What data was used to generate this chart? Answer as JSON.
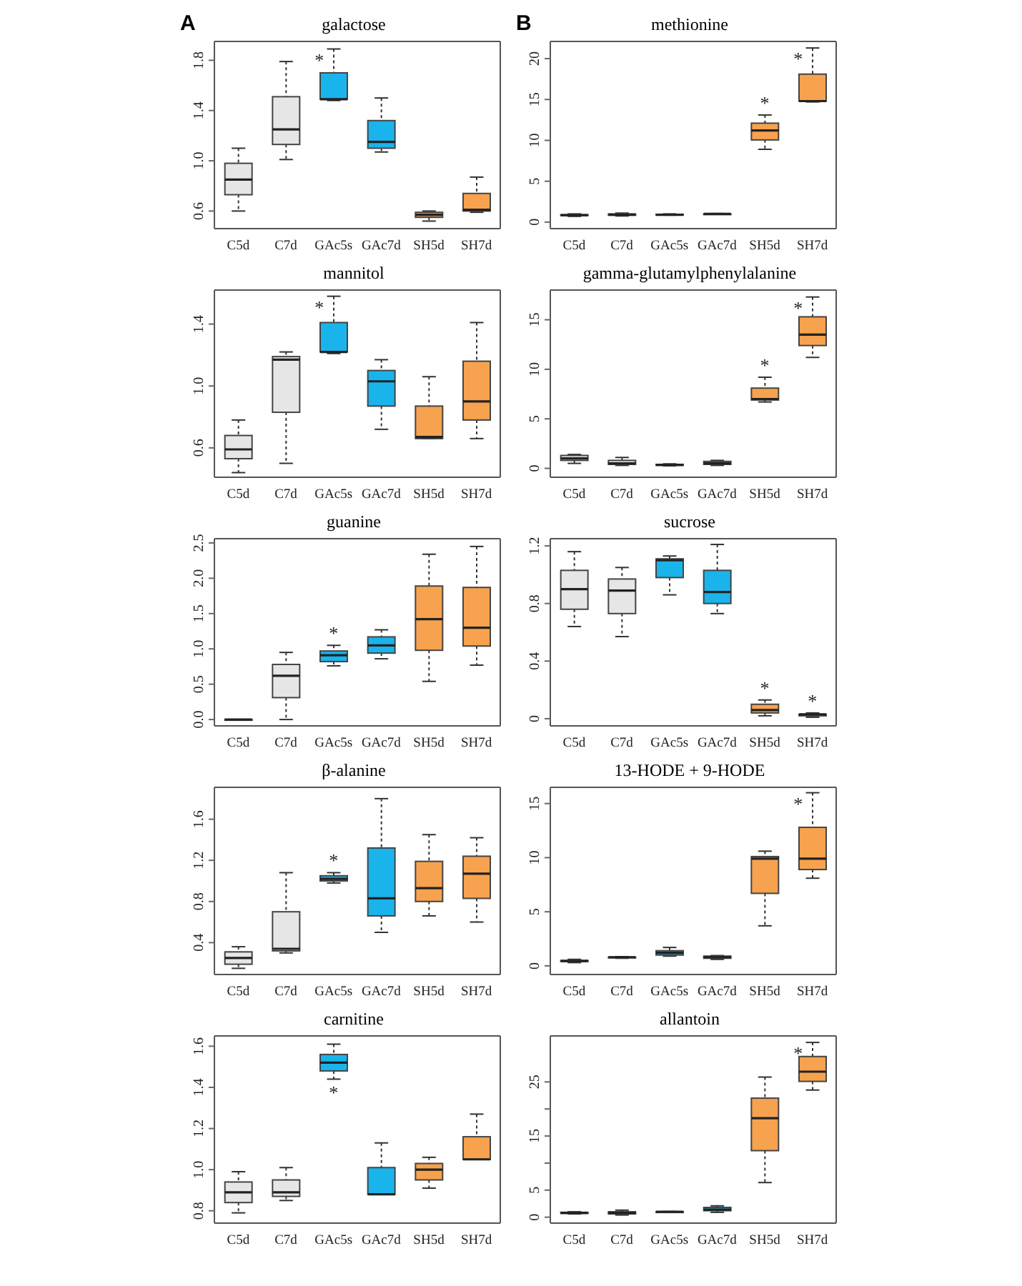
{
  "chart_data": [
    {
      "type": "box",
      "title": "galactose",
      "annotations": [
        "A",
        {
          "text": "*",
          "x": "GAc5s",
          "y": 1.89
        }
      ],
      "categories": [
        "C5d",
        "C7d",
        "GAc5s",
        "GAc7d",
        "SH5d",
        "SH7d"
      ],
      "colors": [
        "#e6e6e6",
        "#e6e6e6",
        "#1ab4ec",
        "#1ab4ec",
        "#f6a24e",
        "#f6a24e"
      ],
      "ylim": [
        0.46,
        1.95
      ],
      "yticks": [
        0.6,
        {
          "value": 1.0,
          "label": "1.0"
        },
        1.4,
        1.8
      ],
      "boxes": [
        {
          "low": 0.6,
          "q1": 0.73,
          "median": 0.85,
          "q3": 0.98,
          "high": 1.1
        },
        {
          "low": 1.01,
          "q1": 1.13,
          "median": 1.25,
          "q3": 1.51,
          "high": 1.79
        },
        {
          "low": 1.48,
          "q1": 1.49,
          "median": 1.49,
          "q3": 1.7,
          "high": 1.89
        },
        {
          "low": 1.07,
          "q1": 1.1,
          "median": 1.15,
          "q3": 1.32,
          "high": 1.5
        },
        {
          "low": 0.52,
          "q1": 0.55,
          "median": 0.57,
          "q3": 0.59,
          "high": 0.6
        },
        {
          "low": 0.59,
          "q1": 0.6,
          "median": 0.61,
          "q3": 0.74,
          "high": 0.87
        }
      ]
    },
    {
      "type": "box",
      "title": "methionine",
      "annotations": [
        "B",
        {
          "text": "*",
          "x": "SH5d",
          "y": 13.1
        },
        {
          "text": "*",
          "x": "SH7d",
          "y": 21.3
        }
      ],
      "categories": [
        "C5d",
        "C7d",
        "GAc5s",
        "GAc7d",
        "SH5d",
        "SH7d"
      ],
      "colors": [
        "#e6e6e6",
        "#e6e6e6",
        "#1ab4ec",
        "#1ab4ec",
        "#f6a24e",
        "#f6a24e"
      ],
      "ylim": [
        -0.8,
        22.1
      ],
      "yticks": [
        0,
        5,
        10,
        15,
        20
      ],
      "boxes": [
        {
          "low": 0.7,
          "q1": 0.8,
          "median": 0.85,
          "q3": 0.9,
          "high": 1.0
        },
        {
          "low": 0.75,
          "q1": 0.85,
          "median": 0.9,
          "q3": 1.0,
          "high": 1.1
        },
        {
          "low": 0.85,
          "q1": 0.9,
          "median": 0.9,
          "q3": 0.95,
          "high": 1.0
        },
        {
          "low": 0.95,
          "q1": 1.0,
          "median": 1.0,
          "q3": 1.0,
          "high": 1.05
        },
        {
          "low": 8.9,
          "q1": 10.05,
          "median": 11.2,
          "q3": 12.1,
          "high": 13.1
        },
        {
          "low": 14.7,
          "q1": 14.8,
          "median": 14.8,
          "q3": 18.1,
          "high": 21.3
        }
      ]
    },
    {
      "type": "box",
      "title": "mannitol",
      "annotations": [
        {
          "text": "*",
          "x": "GAc5s",
          "y": 1.58
        }
      ],
      "categories": [
        "C5d",
        "C7d",
        "GAc5s",
        "GAc7d",
        "SH5d",
        "SH7d"
      ],
      "colors": [
        "#e6e6e6",
        "#e6e6e6",
        "#1ab4ec",
        "#1ab4ec",
        "#f6a24e",
        "#f6a24e"
      ],
      "ylim": [
        0.41,
        1.62
      ],
      "yticks": [
        0.6,
        {
          "value": 1.0,
          "label": "1.0"
        },
        1.4
      ],
      "boxes": [
        {
          "low": 0.44,
          "q1": 0.53,
          "median": 0.59,
          "q3": 0.68,
          "high": 0.78
        },
        {
          "low": 0.5,
          "q1": 0.83,
          "median": 1.17,
          "q3": 1.19,
          "high": 1.22
        },
        {
          "low": 1.21,
          "q1": 1.22,
          "median": 1.22,
          "q3": 1.41,
          "high": 1.58
        },
        {
          "low": 0.72,
          "q1": 0.87,
          "median": 1.03,
          "q3": 1.1,
          "high": 1.17
        },
        {
          "low": 0.66,
          "q1": 0.66,
          "median": 0.67,
          "q3": 0.87,
          "high": 1.06
        },
        {
          "low": 0.66,
          "q1": 0.78,
          "median": 0.9,
          "q3": 1.16,
          "high": 1.41
        }
      ]
    },
    {
      "type": "box",
      "title": "gamma-glutamylphenylalanine",
      "annotations": [
        {
          "text": "*",
          "x": "SH5d",
          "y": 9.2
        },
        {
          "text": "*",
          "x": "SH7d",
          "y": 17.3
        }
      ],
      "categories": [
        "C5d",
        "C7d",
        "GAc5s",
        "GAc7d",
        "SH5d",
        "SH7d"
      ],
      "colors": [
        "#e6e6e6",
        "#e6e6e6",
        "#1ab4ec",
        "#1ab4ec",
        "#f6a24e",
        "#f6a24e"
      ],
      "ylim": [
        -0.9,
        18.0
      ],
      "yticks": [
        0,
        5,
        10,
        15
      ],
      "boxes": [
        {
          "low": 0.5,
          "q1": 0.8,
          "median": 1.0,
          "q3": 1.3,
          "high": 1.4
        },
        {
          "low": 0.3,
          "q1": 0.4,
          "median": 0.5,
          "q3": 0.8,
          "high": 1.1
        },
        {
          "low": 0.25,
          "q1": 0.3,
          "median": 0.35,
          "q3": 0.4,
          "high": 0.45
        },
        {
          "low": 0.3,
          "q1": 0.4,
          "median": 0.5,
          "q3": 0.7,
          "high": 0.8
        },
        {
          "low": 6.7,
          "q1": 6.9,
          "median": 7.0,
          "q3": 8.1,
          "high": 9.2
        },
        {
          "low": 11.2,
          "q1": 12.4,
          "median": 13.5,
          "q3": 15.3,
          "high": 17.3
        }
      ]
    },
    {
      "type": "box",
      "title": "guanine",
      "annotations": [
        {
          "text": "*",
          "x": "GAc5s",
          "y": 1.05
        }
      ],
      "categories": [
        "C5d",
        "C7d",
        "GAc5s",
        "GAc7d",
        "SH5d",
        "SH7d"
      ],
      "colors": [
        "#e6e6e6",
        "#e6e6e6",
        "#1ab4ec",
        "#1ab4ec",
        "#f6a24e",
        "#f6a24e"
      ],
      "ylim": [
        -0.09,
        2.56
      ],
      "yticks": [
        {
          "value": 0.0,
          "label": "0.0"
        },
        0.5,
        {
          "value": 1.0,
          "label": "1.0"
        },
        1.5,
        {
          "value": 2.0,
          "label": "2.0"
        },
        2.5
      ],
      "boxes": [
        {
          "low": 0,
          "q1": 0,
          "median": 0,
          "q3": 0,
          "high": 0
        },
        {
          "low": 0,
          "q1": 0.31,
          "median": 0.62,
          "q3": 0.78,
          "high": 0.95
        },
        {
          "low": 0.76,
          "q1": 0.82,
          "median": 0.91,
          "q3": 0.97,
          "high": 1.05
        },
        {
          "low": 0.86,
          "q1": 0.94,
          "median": 1.05,
          "q3": 1.17,
          "high": 1.27
        },
        {
          "low": 0.54,
          "q1": 0.98,
          "median": 1.42,
          "q3": 1.89,
          "high": 2.34
        },
        {
          "low": 0.77,
          "q1": 1.04,
          "median": 1.3,
          "q3": 1.87,
          "high": 2.45
        }
      ]
    },
    {
      "type": "box",
      "title": "sucrose",
      "annotations": [
        {
          "text": "*",
          "x": "SH5d",
          "y": 0.13
        },
        {
          "text": "*",
          "x": "SH7d",
          "y": 0.04
        }
      ],
      "categories": [
        "C5d",
        "C7d",
        "GAc5s",
        "GAc7d",
        "SH5d",
        "SH7d"
      ],
      "colors": [
        "#e6e6e6",
        "#e6e6e6",
        "#1ab4ec",
        "#1ab4ec",
        "#f6a24e",
        "#f6a24e"
      ],
      "ylim": [
        -0.05,
        1.25
      ],
      "yticks": [
        0,
        0.4,
        0.8,
        1.2
      ],
      "boxes": [
        {
          "low": 0.64,
          "q1": 0.76,
          "median": 0.9,
          "q3": 1.03,
          "high": 1.16
        },
        {
          "low": 0.57,
          "q1": 0.73,
          "median": 0.89,
          "q3": 0.97,
          "high": 1.05
        },
        {
          "low": 0.86,
          "q1": 0.98,
          "median": 1.1,
          "q3": 1.11,
          "high": 1.13
        },
        {
          "low": 0.73,
          "q1": 0.8,
          "median": 0.88,
          "q3": 1.03,
          "high": 1.21
        },
        {
          "low": 0.02,
          "q1": 0.04,
          "median": 0.06,
          "q3": 0.1,
          "high": 0.13
        },
        {
          "low": 0.01,
          "q1": 0.02,
          "median": 0.03,
          "q3": 0.03,
          "high": 0.04
        }
      ]
    },
    {
      "type": "box",
      "title": "β-alanine",
      "annotations": [
        {
          "text": "*",
          "x": "GAc5s",
          "y": 1.08
        }
      ],
      "categories": [
        "C5d",
        "C7d",
        "GAc5s",
        "GAc7d",
        "SH5d",
        "SH7d"
      ],
      "colors": [
        "#e6e6e6",
        "#e6e6e6",
        "#1ab4ec",
        "#1ab4ec",
        "#f6a24e",
        "#f6a24e"
      ],
      "ylim": [
        0.09,
        1.91
      ],
      "yticks": [
        0.4,
        0.8,
        1.2,
        1.6
      ],
      "boxes": [
        {
          "low": 0.15,
          "q1": 0.19,
          "median": 0.25,
          "q3": 0.31,
          "high": 0.36
        },
        {
          "low": 0.3,
          "q1": 0.32,
          "median": 0.34,
          "q3": 0.7,
          "high": 1.08
        },
        {
          "low": 0.98,
          "q1": 1.0,
          "median": 1.02,
          "q3": 1.05,
          "high": 1.08
        },
        {
          "low": 0.5,
          "q1": 0.66,
          "median": 0.83,
          "q3": 1.32,
          "high": 1.8
        },
        {
          "low": 0.66,
          "q1": 0.8,
          "median": 0.93,
          "q3": 1.19,
          "high": 1.45
        },
        {
          "low": 0.6,
          "q1": 0.83,
          "median": 1.07,
          "q3": 1.24,
          "high": 1.42
        }
      ]
    },
    {
      "type": "box",
      "title": "13-HODE + 9-HODE",
      "annotations": [
        {
          "text": "*",
          "x": "SH7d",
          "y": 16.0
        }
      ],
      "categories": [
        "C5d",
        "C7d",
        "GAc5s",
        "GAc7d",
        "SH5d",
        "SH7d"
      ],
      "colors": [
        "#e6e6e6",
        "#e6e6e6",
        "#1ab4ec",
        "#1ab4ec",
        "#f6a24e",
        "#f6a24e"
      ],
      "ylim": [
        -0.8,
        16.5
      ],
      "yticks": [
        0,
        5,
        10,
        15
      ],
      "boxes": [
        {
          "low": 0.3,
          "q1": 0.4,
          "median": 0.45,
          "q3": 0.5,
          "high": 0.6
        },
        {
          "low": 0.7,
          "q1": 0.75,
          "median": 0.8,
          "q3": 0.8,
          "high": 0.85
        },
        {
          "low": 0.9,
          "q1": 1.0,
          "median": 1.2,
          "q3": 1.4,
          "high": 1.7
        },
        {
          "low": 0.6,
          "q1": 0.7,
          "median": 0.8,
          "q3": 0.9,
          "high": 0.95
        },
        {
          "low": 3.7,
          "q1": 6.7,
          "median": 9.9,
          "q3": 10.1,
          "high": 10.6
        },
        {
          "low": 8.1,
          "q1": 8.9,
          "median": 9.9,
          "q3": 12.8,
          "high": 16.0
        }
      ]
    },
    {
      "type": "box",
      "title": "carnitine",
      "annotations": [
        {
          "text": "*",
          "x": "GAc5s",
          "y": 1.44
        }
      ],
      "categories": [
        "C5d",
        "C7d",
        "GAc5s",
        "GAc7d",
        "SH5d",
        "SH7d"
      ],
      "colors": [
        "#e6e6e6",
        "#e6e6e6",
        "#1ab4ec",
        "#1ab4ec",
        "#f6a24e",
        "#f6a24e"
      ],
      "ylim": [
        0.74,
        1.65
      ],
      "yticks": [
        0.8,
        {
          "value": 1.0,
          "label": "1.0"
        },
        1.2,
        1.4,
        1.6
      ],
      "boxes": [
        {
          "low": 0.79,
          "q1": 0.84,
          "median": 0.89,
          "q3": 0.94,
          "high": 0.99
        },
        {
          "low": 0.85,
          "q1": 0.87,
          "median": 0.89,
          "q3": 0.95,
          "high": 1.01
        },
        {
          "low": 1.44,
          "q1": 1.48,
          "median": 1.52,
          "q3": 1.56,
          "high": 1.61
        },
        {
          "low": 0.88,
          "q1": 0.88,
          "median": 0.88,
          "q3": 1.01,
          "high": 1.13
        },
        {
          "low": 0.91,
          "q1": 0.95,
          "median": 1.0,
          "q3": 1.03,
          "high": 1.06
        },
        {
          "low": 1.05,
          "q1": 1.05,
          "median": 1.05,
          "q3": 1.16,
          "high": 1.27
        }
      ]
    },
    {
      "type": "box",
      "title": "allantoin",
      "annotations": [
        {
          "text": "*",
          "x": "SH7d",
          "y": 32.3
        }
      ],
      "categories": [
        "C5d",
        "C7d",
        "GAc5s",
        "GAc7d",
        "SH5d",
        "SH7d"
      ],
      "colors": [
        "#e6e6e6",
        "#e6e6e6",
        "#1ab4ec",
        "#1ab4ec",
        "#f6a24e",
        "#f6a24e"
      ],
      "ylim": [
        -1.1,
        33.5
      ],
      "yticks": [
        0,
        5,
        {
          "value": 10,
          "label": null
        },
        15,
        {
          "value": 20,
          "label": null
        },
        25
      ],
      "boxes": [
        {
          "low": 0.6,
          "q1": 0.7,
          "median": 0.8,
          "q3": 0.9,
          "high": 1.0
        },
        {
          "low": 0.4,
          "q1": 0.6,
          "median": 0.8,
          "q3": 1.0,
          "high": 1.3
        },
        {
          "low": 0.9,
          "q1": 0.95,
          "median": 1.0,
          "q3": 1.0,
          "high": 1.05
        },
        {
          "low": 0.9,
          "q1": 1.2,
          "median": 1.4,
          "q3": 1.8,
          "high": 2.1
        },
        {
          "low": 6.4,
          "q1": 12.3,
          "median": 18.3,
          "q3": 22.0,
          "high": 25.9
        },
        {
          "low": 23.5,
          "q1": 25.1,
          "median": 26.9,
          "q3": 29.7,
          "high": 32.3
        }
      ]
    }
  ]
}
